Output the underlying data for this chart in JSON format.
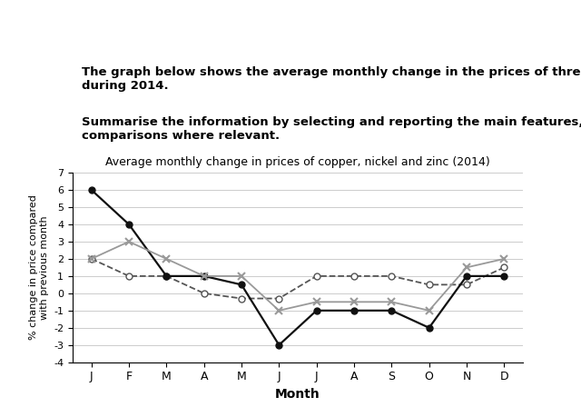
{
  "title": "Average monthly change in prices of copper, nickel and zinc (2014)",
  "xlabel": "Month",
  "ylabel": "% change in price compared\nwith previous month",
  "months": [
    "J",
    "F",
    "M",
    "A",
    "M",
    "J",
    "J",
    "A",
    "S",
    "O",
    "N",
    "D"
  ],
  "copper": [
    2.0,
    1.0,
    1.0,
    0.0,
    -0.3,
    -0.3,
    1.0,
    1.0,
    1.0,
    0.5,
    0.5,
    1.5
  ],
  "nickel": [
    6.0,
    4.0,
    1.0,
    1.0,
    0.5,
    -3.0,
    -1.0,
    -1.0,
    -1.0,
    -2.0,
    1.0,
    1.0
  ],
  "zinc": [
    2.0,
    3.0,
    2.0,
    1.0,
    1.0,
    -1.0,
    -0.5,
    -0.5,
    -0.5,
    -1.0,
    1.5,
    2.0
  ],
  "ylim": [
    -4,
    7
  ],
  "yticks": [
    -4,
    -3,
    -2,
    -1,
    0,
    1,
    2,
    3,
    4,
    5,
    6,
    7
  ],
  "copper_color": "#555555",
  "nickel_color": "#111111",
  "zinc_color": "#999999",
  "background_color": "#ffffff",
  "header_line1": "The graph below shows the average monthly change in the prices of three metals",
  "header_line2": "during 2014.",
  "header_line3": "Summarise the information by selecting and reporting the main features, and make",
  "header_line4": "comparisons where relevant."
}
